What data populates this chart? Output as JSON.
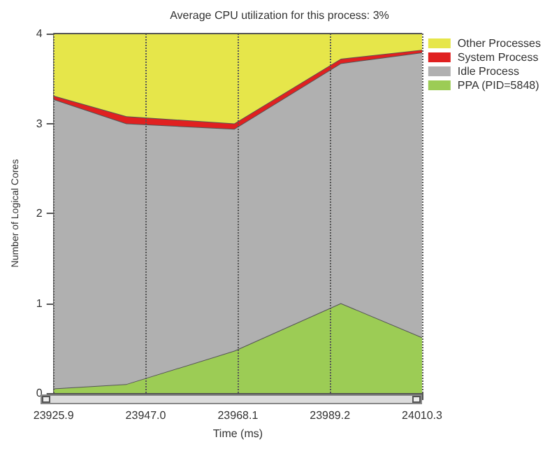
{
  "chart_data": {
    "type": "area",
    "title": "Average CPU utilization for this process: 3%",
    "xlabel": "Time (ms)",
    "ylabel": "Number of Logical Cores",
    "stacked": true,
    "x": [
      23925.9,
      23942.6,
      23967.3,
      23991.7,
      24010.3
    ],
    "series": [
      {
        "name": "PPA (PID=5848)",
        "color": "#9ccc55",
        "values": [
          0.05,
          0.1,
          0.47,
          1.0,
          0.62
        ]
      },
      {
        "name": "Idle Process",
        "color": "#b0b0b0",
        "values": [
          3.22,
          2.9,
          2.47,
          2.67,
          3.17
        ]
      },
      {
        "name": "System Process",
        "color": "#e02020",
        "values": [
          0.04,
          0.08,
          0.06,
          0.05,
          0.03
        ]
      },
      {
        "name": "Other Processes",
        "color": "#e6e64a",
        "values": [
          0.69,
          0.92,
          1.0,
          0.28,
          0.18
        ]
      }
    ],
    "xlim": [
      23925.9,
      24010.3
    ],
    "xticks": [
      23925.9,
      {
        "value": 23947.0,
        "label": "23947.0"
      },
      23968.1,
      23989.2,
      24010.3
    ],
    "ylim": [
      0,
      4
    ],
    "yticks": [
      0,
      1,
      2,
      3,
      4
    ],
    "grid": "x",
    "legend": "top right"
  }
}
